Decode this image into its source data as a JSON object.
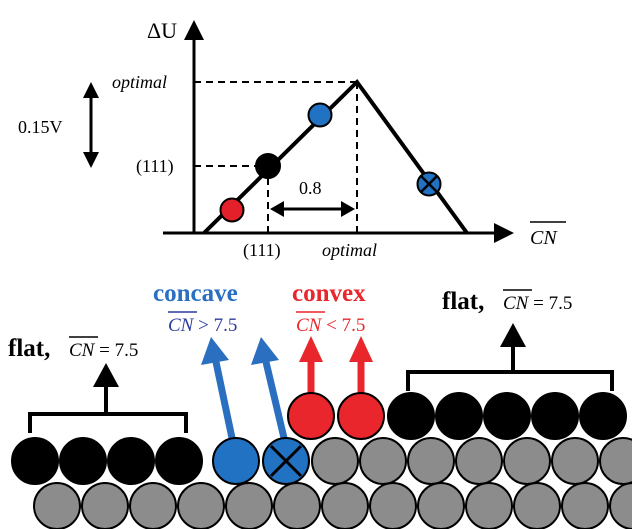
{
  "plot": {
    "y_axis_label": "ΔU",
    "x_axis_label": "CN",
    "y_tick_optimal": "optimal",
    "y_tick_111": "(111)",
    "x_tick_111": "(111)",
    "x_tick_optimal": "optimal",
    "gap_label": "0.8",
    "voltage_label": "0.15V"
  },
  "surface": {
    "concave_title": "concave",
    "concave_cn": "CN",
    "concave_cond": " > 7.5",
    "convex_title": "convex",
    "convex_cn": "CN",
    "convex_cond": " < 7.5",
    "flat_left_title": "flat,",
    "flat_left_cn": "CN",
    "flat_left_eq": " = 7.5",
    "flat_right_title": "flat,",
    "flat_right_cn": "CN",
    "flat_right_eq": " = 7.5"
  },
  "colors": {
    "red": "#e4202a",
    "blue": "#2272c3",
    "black": "#000000",
    "gray": "#8c8c8c",
    "concave_blue": "#2a6fc0",
    "concave_text_blue": "#2b3a9e",
    "convex_red": "#e8262b"
  }
}
